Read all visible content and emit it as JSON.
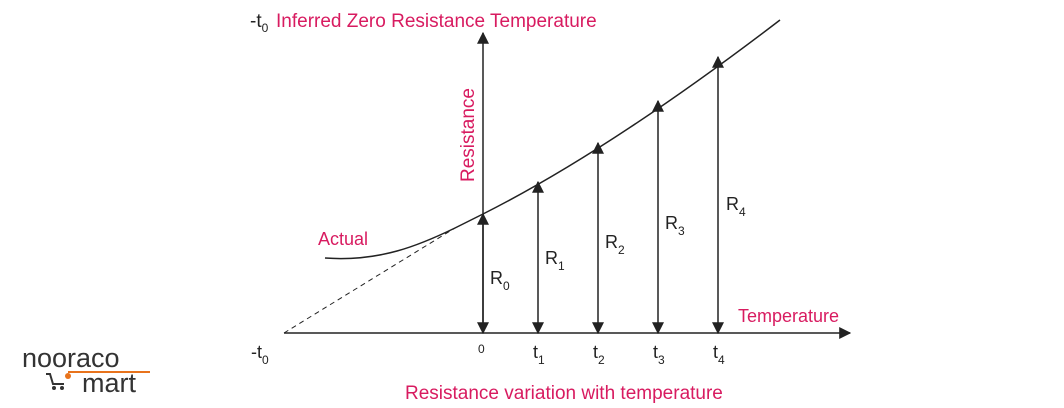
{
  "header": {
    "t0_label": "-t",
    "t0_sub": "0",
    "title": "Inferred Zero Resistance Temperature"
  },
  "axes": {
    "y_label": "Resistance",
    "x_label": "Temperature",
    "origin_neg_label": "-t",
    "origin_neg_sub": "0",
    "origin_label": "0"
  },
  "curve": {
    "actual_label": "Actual"
  },
  "points": [
    {
      "r": "R",
      "r_sub": "0"
    },
    {
      "r": "R",
      "r_sub": "1",
      "t": "t",
      "t_sub": "1"
    },
    {
      "r": "R",
      "r_sub": "2",
      "t": "t",
      "t_sub": "2"
    },
    {
      "r": "R",
      "r_sub": "3",
      "t": "t",
      "t_sub": "3"
    },
    {
      "r": "R",
      "r_sub": "4",
      "t": "t",
      "t_sub": "4"
    }
  ],
  "caption": "Resistance variation with temperature",
  "logo": {
    "line1": "nooraco",
    "line2": "mart"
  },
  "colors": {
    "accent": "#d81b60",
    "line": "#222222",
    "logo_orange": "#e8731c"
  }
}
